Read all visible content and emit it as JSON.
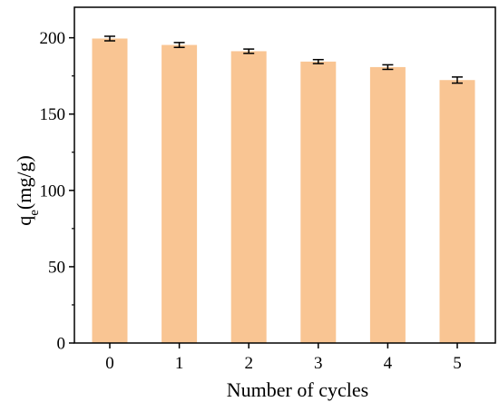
{
  "chart_data": {
    "type": "bar",
    "title": "",
    "xlabel": "Number of cycles",
    "ylabel": {
      "main": "q",
      "subscript": "e",
      "suffix": "(mg/g)"
    },
    "categories": [
      "0",
      "1",
      "2",
      "3",
      "4",
      "5"
    ],
    "values": [
      199.5,
      195.3,
      191.2,
      184.4,
      180.8,
      172.3
    ],
    "errors": [
      1.5,
      1.6,
      1.4,
      1.3,
      1.5,
      2.0
    ],
    "ylim": [
      0,
      220
    ],
    "yticks": [
      "0",
      "50",
      "100",
      "150",
      "200"
    ],
    "bar_color": "#f9c593",
    "error_color": "#000000",
    "grid": false,
    "legend": "none"
  }
}
